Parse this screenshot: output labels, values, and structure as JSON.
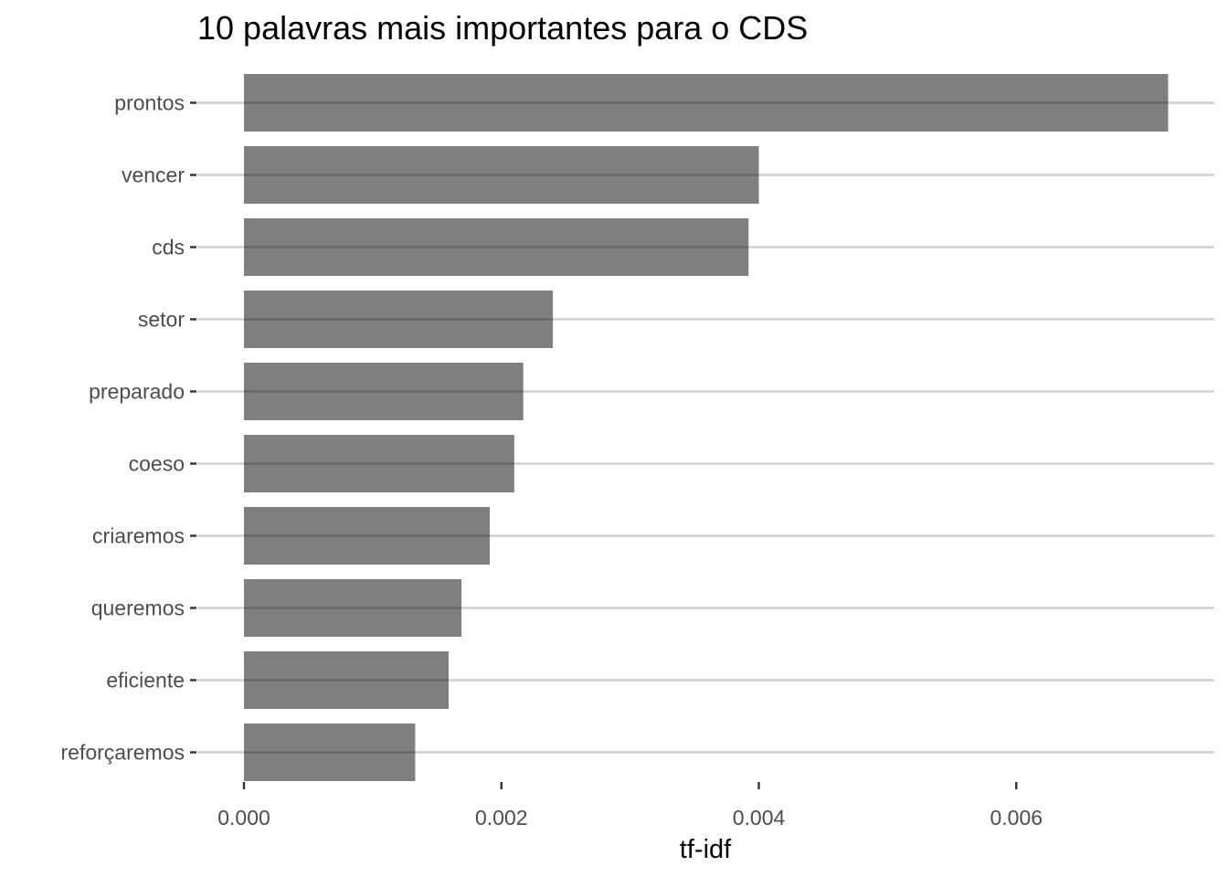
{
  "chart_data": {
    "type": "bar",
    "orientation": "horizontal",
    "title": "10 palavras mais importantes para o CDS",
    "xlabel": "tf-idf",
    "ylabel": "",
    "categories": [
      "prontos",
      "vencer",
      "cds",
      "setor",
      "preparado",
      "coeso",
      "criaremos",
      "queremos",
      "eficiente",
      "reforçaremos"
    ],
    "values": [
      0.00718,
      0.004,
      0.00392,
      0.0024,
      0.00217,
      0.0021,
      0.00191,
      0.00169,
      0.00159,
      0.00133
    ],
    "xlim": [
      0,
      0.00718
    ],
    "xticks": [
      0.0,
      0.002,
      0.004,
      0.006
    ],
    "xtick_labels": [
      "0.000",
      "0.002",
      "0.004",
      "0.006"
    ],
    "grid": "horizontal-major",
    "legend": "none",
    "bar_color": "#7f7f7f",
    "grid_color": "#d0d0d0"
  }
}
